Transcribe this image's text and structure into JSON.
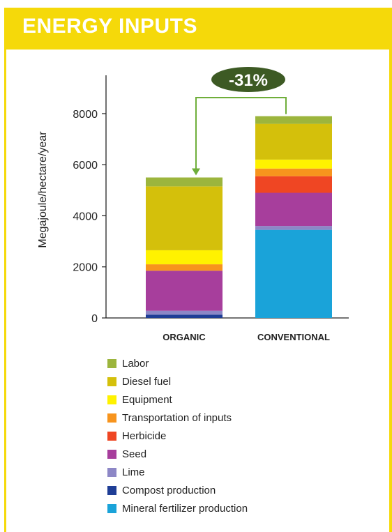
{
  "header": {
    "title": "ENERGY INPUTS",
    "band_color": "#f5d90a"
  },
  "chart_data": {
    "type": "bar",
    "stacked": true,
    "title": "ENERGY INPUTS",
    "xlabel": "",
    "ylabel": "Megajoule/hectare/year",
    "ylim": [
      0,
      9500
    ],
    "yticks": [
      0,
      2000,
      4000,
      6000,
      8000
    ],
    "grid": false,
    "categories": [
      "ORGANIC",
      "CONVENTIONAL"
    ],
    "series": [
      {
        "name": "Mineral fertilizer production",
        "color": "#1aa3d9",
        "values": [
          0,
          3450
        ]
      },
      {
        "name": "Compost production",
        "color": "#1f3e96",
        "values": [
          130,
          0
        ]
      },
      {
        "name": "Lime",
        "color": "#8d87c6",
        "values": [
          150,
          150
        ]
      },
      {
        "name": "Seed",
        "color": "#a73e9c",
        "values": [
          1570,
          1300
        ]
      },
      {
        "name": "Herbicide",
        "color": "#ef4623",
        "values": [
          0,
          650
        ]
      },
      {
        "name": "Transportation of inputs",
        "color": "#f7941d",
        "values": [
          250,
          300
        ]
      },
      {
        "name": "Equipment",
        "color": "#fff200",
        "values": [
          550,
          350
        ]
      },
      {
        "name": "Diesel fuel",
        "color": "#d4c00b",
        "values": [
          2500,
          1400
        ]
      },
      {
        "name": "Labor",
        "color": "#9cb53d",
        "values": [
          350,
          300
        ]
      }
    ],
    "legend_position": "bottom",
    "annotation": {
      "text": "-31%",
      "from": "CONVENTIONAL",
      "to": "ORGANIC",
      "color": "#3d5a24",
      "arrow_color": "#6fae3a"
    }
  }
}
